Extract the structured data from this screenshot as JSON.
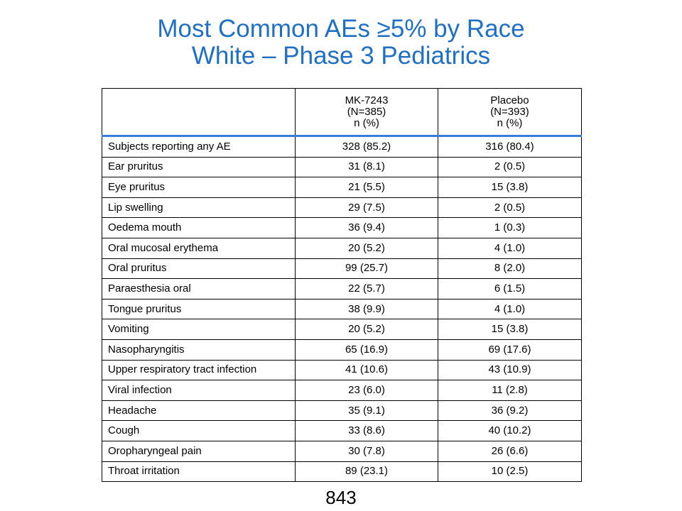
{
  "slide": {
    "title_line1": "Most Common AEs ≥5% by Race",
    "title_line2": "White – Phase 3 Pediatrics",
    "page_number": "843",
    "accent_color": "#1f6fc4",
    "header_rule_color": "#3a7bd5"
  },
  "table": {
    "headers": {
      "col1": "",
      "mk": [
        "MK-7243",
        "(N=385)",
        "n (%)"
      ],
      "placebo": [
        "Placebo",
        "(N=393)",
        "n (%)"
      ]
    },
    "rows": [
      {
        "ae": "Subjects reporting any AE",
        "mk": "328 (85.2)",
        "placebo": "316 (80.4)"
      },
      {
        "ae": "Ear pruritus",
        "mk": "31 (8.1)",
        "placebo": "2 (0.5)"
      },
      {
        "ae": "Eye pruritus",
        "mk": "21 (5.5)",
        "placebo": "15 (3.8)"
      },
      {
        "ae": "Lip swelling",
        "mk": "29 (7.5)",
        "placebo": "2 (0.5)"
      },
      {
        "ae": "Oedema mouth",
        "mk": "36 (9.4)",
        "placebo": "1 (0.3)"
      },
      {
        "ae": "Oral mucosal erythema",
        "mk": "20 (5.2)",
        "placebo": "4 (1.0)"
      },
      {
        "ae": "Oral pruritus",
        "mk": "99 (25.7)",
        "placebo": "8 (2.0)"
      },
      {
        "ae": "Paraesthesia oral",
        "mk": "22 (5.7)",
        "placebo": "6 (1.5)"
      },
      {
        "ae": "Tongue pruritus",
        "mk": "38 (9.9)",
        "placebo": "4 (1.0)"
      },
      {
        "ae": "Vomiting",
        "mk": "20 (5.2)",
        "placebo": "15 (3.8)"
      },
      {
        "ae": "Nasopharyngitis",
        "mk": "65 (16.9)",
        "placebo": "69 (17.6)"
      },
      {
        "ae": "Upper respiratory tract infection",
        "mk": "41 (10.6)",
        "placebo": "43 (10.9)"
      },
      {
        "ae": "Viral infection",
        "mk": "23 (6.0)",
        "placebo": "11 (2.8)"
      },
      {
        "ae": "Headache",
        "mk": "35 (9.1)",
        "placebo": "36 (9.2)"
      },
      {
        "ae": "Cough",
        "mk": "33 (8.6)",
        "placebo": "40 (10.2)"
      },
      {
        "ae": "Oropharyngeal pain",
        "mk": "30 (7.8)",
        "placebo": "26 (6.6)"
      },
      {
        "ae": "Throat irritation",
        "mk": "89 (23.1)",
        "placebo": "10 (2.5)"
      }
    ]
  }
}
